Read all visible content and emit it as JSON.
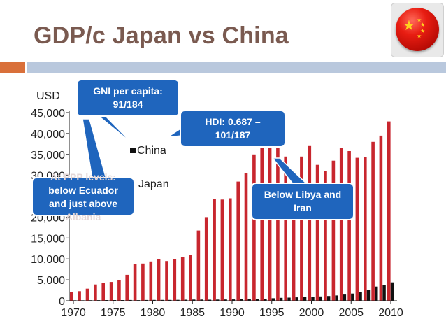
{
  "slide": {
    "title": "GDP/c Japan vs China",
    "flag_icon": "china-flag-icon"
  },
  "colors": {
    "japan": "#c8262e",
    "china": "#111111",
    "callout": "#1f65bd",
    "title": "#7a5a50",
    "accent_orange": "#d9703a",
    "accent_blue": "#b9c8dd"
  },
  "callouts": {
    "gni": {
      "line1": "GNI per capita:",
      "line2": "91/184"
    },
    "hdi": {
      "line1": "HDI: 0.687 –",
      "line2": "101/187"
    },
    "ppp": {
      "line1": "At PPP levels:",
      "line2": "below Ecuador",
      "line3": "and just above",
      "line4": "Albania"
    },
    "libya": {
      "line1": "Below Libya and",
      "line2": "Iran"
    }
  },
  "chart_data": {
    "type": "bar",
    "title": "",
    "ylabel": "USD",
    "xlabel": "",
    "ylim": [
      0,
      45000
    ],
    "yticks": [
      0,
      5000,
      10000,
      15000,
      20000,
      25000,
      30000,
      35000,
      40000,
      45000
    ],
    "ytick_labels": [
      "0",
      "5,000",
      "10,000",
      "15,000",
      "20,000",
      "25,000",
      "30,000",
      "35,000",
      "40,000",
      "45,000"
    ],
    "xtick_labels": [
      "1970",
      "1975",
      "1980",
      "1985",
      "1990",
      "1995",
      "2000",
      "2005",
      "2010"
    ],
    "legend": [
      "China",
      "Japan"
    ],
    "categories": [
      1970,
      1971,
      1972,
      1973,
      1974,
      1975,
      1976,
      1977,
      1978,
      1979,
      1980,
      1981,
      1982,
      1983,
      1984,
      1985,
      1986,
      1987,
      1988,
      1989,
      1990,
      1991,
      1992,
      1993,
      1994,
      1995,
      1996,
      1997,
      1998,
      1999,
      2000,
      2001,
      2002,
      2003,
      2004,
      2005,
      2006,
      2007,
      2008,
      2009,
      2010
    ],
    "series": [
      {
        "name": "Japan",
        "values": [
          2000,
          2300,
          2900,
          3900,
          4300,
          4500,
          5000,
          6200,
          8700,
          8900,
          9400,
          10000,
          9500,
          10000,
          10500,
          11000,
          16800,
          20000,
          24300,
          24200,
          24500,
          28500,
          30500,
          35000,
          38800,
          42500,
          37400,
          34500,
          30500,
          34500,
          37000,
          32500,
          31000,
          33500,
          36500,
          35800,
          34200,
          34300,
          38000,
          39500,
          42900
        ]
      },
      {
        "name": "China",
        "values": [
          110,
          120,
          130,
          155,
          160,
          175,
          165,
          185,
          155,
          180,
          195,
          200,
          200,
          220,
          250,
          290,
          280,
          250,
          280,
          300,
          320,
          330,
          360,
          370,
          470,
          600,
          700,
          760,
          820,
          860,
          940,
          1040,
          1130,
          1270,
          1490,
          1730,
          2070,
          2650,
          3400,
          3750,
          4400
        ]
      }
    ]
  }
}
